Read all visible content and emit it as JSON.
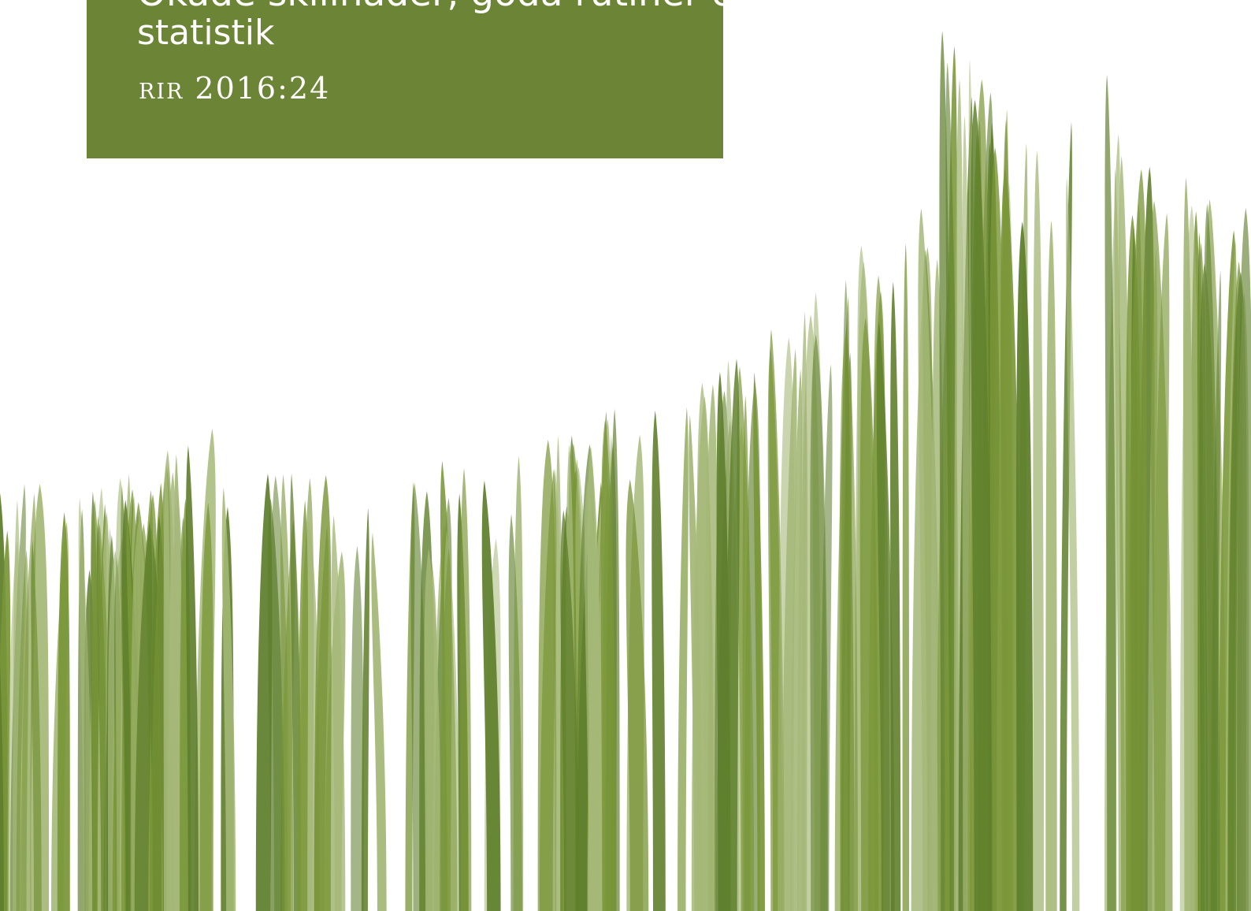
{
  "cover": {
    "title_partial_line": "Ökade skillnader, goda rutiner och fler",
    "title_last_line": "statistik",
    "report_id": "RIR 2016:24"
  },
  "colors": {
    "panel": "#6c8436",
    "grass_dark": "#5f7f2c",
    "grass_mid": "#7a9638",
    "grass_light": "#a5b878",
    "text": "#ffffff"
  }
}
